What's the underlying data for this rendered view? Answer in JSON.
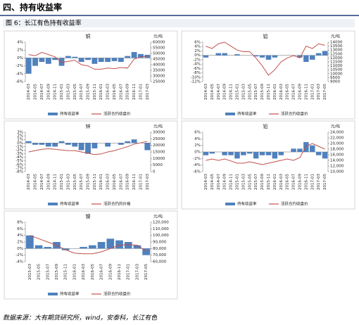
{
  "header": {
    "title": "四、持有收益率",
    "caption": "图 6：长江有色持有收益率"
  },
  "source": "数据来源：大有期货研究所，wind，安泰科，长江有色",
  "chart_data": [
    {
      "type": "combo",
      "title": "铜",
      "y2_label": "元/吨",
      "categories": [
        "2014-03",
        "2014-05",
        "2014-07",
        "2014-09",
        "2014-11",
        "2015-01",
        "2015-03",
        "2015-05",
        "2015-07",
        "2015-09",
        "2015-11",
        "2016-01",
        "2016-03",
        "2016-05",
        "2016-07",
        "2016-09",
        "2016-11",
        "2017-01",
        "2017-03"
      ],
      "series": [
        {
          "name": "持有收益率",
          "color": "#4f81bd",
          "values": [
            -4,
            -2,
            -1,
            -1.5,
            -0.5,
            -2,
            0.5,
            0.3,
            -1,
            -0.5,
            -1.5,
            -1,
            -1,
            -0.8,
            -1,
            0.5,
            1.5,
            1,
            0.8
          ]
        },
        {
          "name": "活跃合约收盘价",
          "color": "#c0504d",
          "axis": "y2",
          "values": [
            49000,
            48000,
            51000,
            49000,
            47000,
            42000,
            43000,
            44000,
            40000,
            39000,
            36000,
            36000,
            37000,
            36500,
            37500,
            37000,
            45000,
            47000,
            47500
          ]
        }
      ],
      "ylim": [
        -6,
        4
      ],
      "yticks": [
        {
          "value": 4,
          "label": "4%"
        },
        {
          "value": 2,
          "label": "2%"
        },
        {
          "value": 0,
          "label": "0%"
        },
        {
          "value": -2,
          "label": "-2%"
        },
        {
          "value": -4,
          "label": "-4%"
        },
        {
          "value": -6,
          "label": "-6%"
        }
      ],
      "y2lim": [
        25000,
        60000
      ],
      "y2ticks": [
        60000,
        55000,
        50000,
        45000,
        40000,
        35000,
        30000,
        25000
      ]
    },
    {
      "type": "combo",
      "title": "铝",
      "y2_label": "元/吨",
      "categories": [
        "2014-03",
        "2014-05",
        "2014-07",
        "2014-09",
        "2014-11",
        "2015-01",
        "2015-03",
        "2015-05",
        "2015-07",
        "2015-09",
        "2015-11",
        "2016-01",
        "2016-03",
        "2016-05",
        "2016-07",
        "2016-09",
        "2016-11",
        "2017-01",
        "2017-03",
        "2017-05"
      ],
      "series": [
        {
          "name": "持有收益率",
          "color": "#4f81bd",
          "values": [
            -1,
            0,
            1,
            1,
            0,
            0.5,
            0,
            0,
            -0.5,
            -1,
            -2,
            -1,
            0,
            0,
            0,
            -1,
            -3,
            -2,
            1,
            2
          ]
        },
        {
          "name": "活跃合约收盘价",
          "color": "#c0504d",
          "axis": "y2",
          "values": [
            13500,
            13200,
            13800,
            14000,
            13500,
            13000,
            12800,
            12800,
            12000,
            11000,
            9800,
            10500,
            11500,
            12000,
            12300,
            12000,
            13500,
            13200,
            13800,
            13600
          ]
        }
      ],
      "ylim": [
        -12,
        6
      ],
      "yticks": [
        {
          "value": 6,
          "label": "6%"
        },
        {
          "value": 4,
          "label": "4%"
        },
        {
          "value": 2,
          "label": "2%"
        },
        {
          "value": 0,
          "label": "0%"
        },
        {
          "value": -2,
          "label": "-2%"
        },
        {
          "value": -4,
          "label": "-4%"
        },
        {
          "value": -6,
          "label": "-6%"
        },
        {
          "value": -8,
          "label": "-8%"
        },
        {
          "value": -10,
          "label": "-10%"
        },
        {
          "value": -12,
          "label": "-12%"
        }
      ],
      "y2lim": [
        9000,
        14000
      ],
      "y2ticks": [
        14000,
        13500,
        13000,
        12500,
        12000,
        11500,
        11000,
        10500,
        10000,
        9500,
        9000
      ]
    },
    {
      "type": "combo",
      "title": "锌",
      "y2_label": "元/吨",
      "categories": [
        "2014-03",
        "2014-05",
        "2014-07",
        "2014-09",
        "2014-11",
        "2015-01",
        "2015-03",
        "2015-05",
        "2015-07",
        "2015-09",
        "2015-11",
        "2016-01",
        "2016-03",
        "2016-05",
        "2016-07",
        "2016-09",
        "2016-11",
        "2017-01",
        "2017-03"
      ],
      "series": [
        {
          "name": "持有收益率",
          "color": "#4f81bd",
          "values": [
            0.5,
            -0.5,
            -0.5,
            -1,
            -1,
            0.5,
            -0.5,
            -1,
            -2,
            -3,
            -1.5,
            0,
            -1,
            0,
            -0.5,
            0.5,
            1,
            0,
            -2
          ]
        },
        {
          "name": "活跃合约的价格",
          "color": "#c0504d",
          "axis": "y2",
          "values": [
            15000,
            16000,
            17000,
            17500,
            17000,
            16500,
            16000,
            16000,
            15000,
            14000,
            13000,
            13500,
            15000,
            16000,
            17500,
            19000,
            21000,
            22000,
            23000
          ]
        }
      ],
      "ylim": [
        -8,
        3
      ],
      "yticks": [
        {
          "value": 3,
          "label": "3%"
        },
        {
          "value": 2,
          "label": "2%"
        },
        {
          "value": 1,
          "label": "1%"
        },
        {
          "value": 0,
          "label": "0%"
        },
        {
          "value": -1,
          "label": "-1%"
        },
        {
          "value": -2,
          "label": "-2%"
        },
        {
          "value": -3,
          "label": "-3%"
        },
        {
          "value": -4,
          "label": "-4%"
        },
        {
          "value": -5,
          "label": "-5%"
        },
        {
          "value": -6,
          "label": "-6%"
        },
        {
          "value": -7,
          "label": "-7%"
        },
        {
          "value": -8,
          "label": "-8%"
        }
      ],
      "y2lim": [
        0,
        30000
      ],
      "y2ticks": [
        30000,
        25000,
        20000,
        15000,
        10000,
        5000,
        0
      ]
    },
    {
      "type": "combo",
      "title": "铅",
      "y2_label": "元/吨",
      "categories": [
        "2014-03",
        "2014-05",
        "2014-07",
        "2014-09",
        "2014-11",
        "2015-01",
        "2015-03",
        "2015-05",
        "2015-07",
        "2015-09",
        "2015-11",
        "2016-01",
        "2016-03",
        "2016-05",
        "2016-07",
        "2016-09",
        "2016-11",
        "2017-01",
        "2017-03",
        "2017-05"
      ],
      "series": [
        {
          "name": "持有收益率",
          "color": "#4f81bd",
          "values": [
            -1,
            -0.5,
            0,
            -1,
            -1,
            -2,
            -1,
            -0.5,
            -2,
            -1,
            -1,
            -2,
            -1,
            0,
            1,
            1,
            3,
            2,
            -1,
            -2
          ]
        },
        {
          "name": "活跃合约收盘价",
          "color": "#c0504d",
          "axis": "y2",
          "values": [
            14000,
            14500,
            14000,
            14500,
            13800,
            13000,
            13000,
            13500,
            13000,
            12500,
            13000,
            13500,
            14000,
            14500,
            14000,
            15000,
            19000,
            20000,
            19000,
            18000
          ]
        }
      ],
      "ylim": [
        -6,
        6
      ],
      "yticks": [
        {
          "value": 6,
          "label": "6%"
        },
        {
          "value": 4,
          "label": "4%"
        },
        {
          "value": 2,
          "label": "2%"
        },
        {
          "value": 0,
          "label": "0%"
        },
        {
          "value": -2,
          "label": "-2%"
        },
        {
          "value": -4,
          "label": "-4%"
        },
        {
          "value": -6,
          "label": "-6%"
        }
      ],
      "y2lim": [
        10000,
        24000
      ],
      "y2ticks": [
        {
          "value": 24000,
          "label": "24,000"
        },
        {
          "value": 22000,
          "label": "22,000"
        },
        {
          "value": 20000,
          "label": "20,000"
        },
        {
          "value": 18000,
          "label": "18,000"
        },
        {
          "value": 16000,
          "label": "16,000"
        },
        {
          "value": 14000,
          "label": "14,000"
        },
        {
          "value": 12000,
          "label": "12,000"
        },
        {
          "value": 10000,
          "label": "10,000"
        }
      ]
    },
    {
      "type": "combo",
      "title": "镍",
      "y2_label": "元/吨",
      "categories": [
        "2015-03",
        "2015-05",
        "2015-07",
        "2015-09",
        "2015-11",
        "2016-01",
        "2016-03",
        "2016-05",
        "2016-07",
        "2016-09",
        "2016-11",
        "2017-01",
        "2017-03",
        "2017-05"
      ],
      "series": [
        {
          "name": "持有收益率",
          "color": "#4f81bd",
          "values": [
            4,
            1,
            0.5,
            2,
            -0.5,
            0,
            0.5,
            1,
            2,
            3,
            2.5,
            2,
            1,
            -2
          ]
        },
        {
          "name": "活跃合约收盘价",
          "color": "#c0504d",
          "axis": "y2",
          "values": [
            100000,
            95000,
            90000,
            85000,
            78000,
            73000,
            72000,
            72000,
            75000,
            80000,
            85000,
            86000,
            85000,
            76000
          ]
        }
      ],
      "ylim": [
        -4,
        8
      ],
      "yticks": [
        {
          "value": 8,
          "label": "8%"
        },
        {
          "value": 6,
          "label": "6%"
        },
        {
          "value": 4,
          "label": "4%"
        },
        {
          "value": 2,
          "label": "2%"
        },
        {
          "value": 0,
          "label": "0%"
        },
        {
          "value": -2,
          "label": "-2%"
        },
        {
          "value": -4,
          "label": "-4%"
        }
      ],
      "y2lim": [
        60000,
        120000
      ],
      "y2ticks": [
        {
          "value": 120000,
          "label": "120,000"
        },
        {
          "value": 110000,
          "label": "110,000"
        },
        {
          "value": 100000,
          "label": "100,000"
        },
        {
          "value": 90000,
          "label": "90,000"
        },
        {
          "value": 80000,
          "label": "80,000"
        },
        {
          "value": 70000,
          "label": "70,000"
        },
        {
          "value": 60000,
          "label": "60,000"
        }
      ]
    }
  ]
}
